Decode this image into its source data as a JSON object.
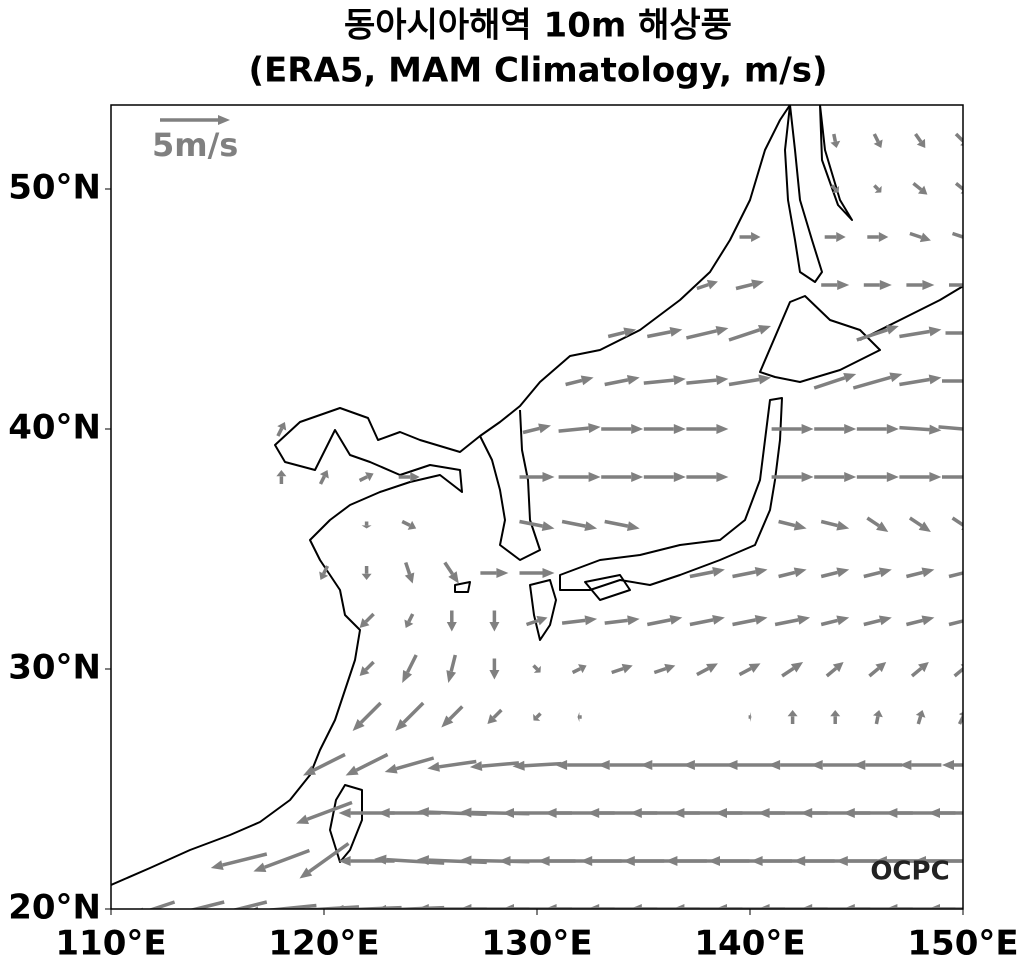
{
  "map": {
    "title": [
      "동아시아해역 10m 해상풍",
      "(ERA5, MAM Climatology, m/s)"
    ],
    "xlim": [
      110,
      150
    ],
    "ylim": [
      20,
      53.5
    ],
    "xticks": [
      {
        "value": 110,
        "label": "110°E"
      },
      {
        "value": 120,
        "label": "120°E"
      },
      {
        "value": 130,
        "label": "130°E"
      },
      {
        "value": 140,
        "label": "140°E"
      },
      {
        "value": 150,
        "label": "150°E"
      }
    ],
    "yticks": [
      {
        "value": 20,
        "label": "20°N"
      },
      {
        "value": 30,
        "label": "30°N"
      },
      {
        "value": 40,
        "label": "40°N"
      },
      {
        "value": 50,
        "label": "50°N"
      }
    ],
    "reference": {
      "value": 5,
      "label": "5m/s"
    },
    "logo": "OCPC",
    "arrow_color": "#808080",
    "lons": [
      110,
      112,
      114,
      116,
      118,
      120,
      122,
      124,
      126,
      128,
      130,
      132,
      134,
      136,
      138,
      140,
      142,
      144,
      146,
      148,
      150
    ],
    "lats": [
      20,
      22,
      24,
      26,
      28,
      30,
      32,
      34,
      36,
      38,
      40,
      42,
      44,
      46,
      48,
      50,
      52
    ],
    "u": [
      [
        null,
        -3,
        -4,
        -4,
        -5,
        -5,
        -5,
        -5,
        -5,
        -5,
        -5,
        -5,
        -5,
        -5,
        -5,
        -5,
        -5,
        -5,
        -5,
        -5,
        -5
      ],
      [
        null,
        null,
        null,
        -4,
        -4,
        -3.5,
        -4,
        -5,
        -5,
        -5,
        -5.5,
        -6,
        -6,
        -6,
        -6,
        -6,
        -6,
        -6,
        -6,
        -6.5,
        -7
      ],
      [
        null,
        null,
        null,
        null,
        null,
        -4,
        -4,
        -4.5,
        -5,
        -5,
        -5,
        -5,
        -5,
        -5,
        -5,
        -5,
        -5,
        -5,
        -5,
        -5,
        -5
      ],
      [
        null,
        null,
        null,
        null,
        null,
        -3,
        -3,
        -3.5,
        -3.5,
        -3.5,
        -3.5,
        -3.5,
        -3.5,
        -3.5,
        -3.5,
        -3.5,
        -3.5,
        -3.5,
        -3.5,
        -3,
        -3
      ],
      [
        null,
        null,
        null,
        null,
        null,
        null,
        -2,
        -2,
        -1.5,
        -1,
        -0.5,
        -0.3,
        0,
        0,
        0,
        0.2,
        0,
        0,
        0.2,
        0.3,
        0.5
      ],
      [
        null,
        null,
        null,
        null,
        null,
        null,
        -1,
        -1,
        -0.5,
        0,
        0.5,
        1,
        1.5,
        1.5,
        1.5,
        1.5,
        1.5,
        1.2,
        1.2,
        1.2,
        1.2
      ],
      [
        null,
        null,
        null,
        null,
        null,
        null,
        -1,
        -0.5,
        0,
        0,
        1.5,
        2.5,
        2.5,
        2.5,
        2.5,
        2.5,
        2.5,
        2,
        2,
        2,
        2
      ],
      [
        null,
        null,
        null,
        null,
        null,
        -0.5,
        0,
        0.5,
        1,
        2,
        2.5,
        null,
        null,
        null,
        2.5,
        2.5,
        2,
        2,
        2,
        2,
        2
      ],
      [
        null,
        null,
        null,
        null,
        null,
        null,
        0,
        1,
        null,
        null,
        2.5,
        2.5,
        2.5,
        null,
        null,
        null,
        2,
        2,
        1.5,
        1.5,
        1.5
      ],
      [
        null,
        null,
        null,
        null,
        0,
        0.5,
        1,
        1.5,
        null,
        null,
        2.5,
        3,
        3,
        3,
        3,
        null,
        3,
        3,
        3,
        3,
        3
      ],
      [
        null,
        null,
        null,
        null,
        0.5,
        null,
        null,
        null,
        null,
        null,
        2,
        3,
        3,
        3,
        3,
        null,
        3,
        3,
        3,
        3,
        3.5
      ],
      [
        null,
        null,
        null,
        null,
        null,
        null,
        null,
        null,
        null,
        null,
        null,
        2,
        2.5,
        3,
        3,
        3,
        null,
        3,
        3.5,
        3,
        3
      ],
      [
        null,
        null,
        null,
        null,
        null,
        null,
        null,
        null,
        null,
        null,
        null,
        null,
        2,
        2.5,
        3,
        3,
        null,
        null,
        3,
        3,
        2.5
      ],
      [
        null,
        null,
        null,
        null,
        null,
        null,
        null,
        null,
        null,
        null,
        null,
        null,
        null,
        null,
        1.5,
        2,
        null,
        2,
        2,
        2,
        2
      ],
      [
        null,
        null,
        null,
        null,
        null,
        null,
        null,
        null,
        null,
        null,
        null,
        null,
        null,
        null,
        null,
        1.5,
        null,
        1.5,
        1.5,
        1.5,
        1.5
      ],
      [
        null,
        null,
        null,
        null,
        null,
        null,
        null,
        null,
        null,
        null,
        null,
        null,
        null,
        null,
        null,
        null,
        null,
        0.5,
        0.5,
        1,
        1
      ],
      [
        null,
        null,
        null,
        null,
        null,
        null,
        null,
        null,
        null,
        null,
        null,
        null,
        null,
        null,
        null,
        null,
        null,
        0.2,
        0.5,
        0.7,
        1
      ]
    ],
    "v": [
      [
        null,
        -1,
        -1,
        -1,
        -0.5,
        -0.3,
        -0.2,
        -0.2,
        0,
        0,
        0,
        0,
        0,
        0,
        0,
        0,
        0,
        0,
        0,
        0,
        0
      ],
      [
        null,
        null,
        null,
        -1,
        -1.5,
        -2.5,
        0,
        0.3,
        0.2,
        0.1,
        0,
        0,
        0,
        0,
        0,
        0,
        0,
        0,
        0,
        0,
        0
      ],
      [
        null,
        null,
        null,
        null,
        null,
        -1.5,
        0,
        0,
        0.2,
        0.1,
        0,
        0,
        0,
        0,
        0,
        0,
        0,
        0,
        0,
        0,
        0
      ],
      [
        null,
        null,
        null,
        null,
        null,
        -1.5,
        -1.5,
        -1,
        -0.5,
        -0.3,
        -0.2,
        0,
        0,
        0,
        0,
        0,
        0,
        0,
        0,
        0,
        0
      ],
      [
        null,
        null,
        null,
        null,
        null,
        null,
        -2,
        -2,
        -1.5,
        -1,
        -0.5,
        0,
        0,
        0,
        0,
        0,
        1,
        1,
        1,
        1,
        1
      ],
      [
        null,
        null,
        null,
        null,
        null,
        null,
        -1,
        -2,
        -2,
        -1.5,
        -0.5,
        0.5,
        0.5,
        0.5,
        0.8,
        0.8,
        1,
        1,
        1,
        1,
        1
      ],
      [
        null,
        null,
        null,
        null,
        null,
        null,
        -1,
        -1,
        -1.5,
        -1.5,
        0.5,
        0.3,
        0.3,
        0.5,
        0.5,
        0.5,
        0.5,
        0.5,
        0.5,
        0.5,
        0.5
      ],
      [
        null,
        null,
        null,
        null,
        null,
        -1,
        -1,
        -1.5,
        -1.5,
        0,
        0,
        null,
        null,
        null,
        0.5,
        0.5,
        0.5,
        0.5,
        0.5,
        0.5,
        0.5
      ],
      [
        null,
        null,
        null,
        null,
        null,
        null,
        -0.5,
        -0.5,
        null,
        null,
        -0.5,
        -0.5,
        -0.5,
        null,
        null,
        null,
        -0.5,
        -0.5,
        -1,
        -1,
        -1
      ],
      [
        null,
        null,
        null,
        null,
        1,
        1,
        0.5,
        0,
        null,
        null,
        0,
        0,
        0,
        0,
        0,
        null,
        0,
        0,
        0,
        0,
        0
      ],
      [
        null,
        null,
        null,
        null,
        1,
        null,
        null,
        null,
        null,
        null,
        0.5,
        0.3,
        0,
        0,
        0,
        null,
        0,
        0,
        0,
        -0.2,
        -0.3
      ],
      [
        null,
        null,
        null,
        null,
        null,
        null,
        null,
        null,
        null,
        null,
        null,
        0.5,
        0.5,
        0.3,
        0.3,
        0.5,
        null,
        1,
        1,
        0.5,
        0
      ],
      [
        null,
        null,
        null,
        null,
        null,
        null,
        null,
        null,
        null,
        null,
        null,
        null,
        0.5,
        0.5,
        0.7,
        1,
        null,
        null,
        1,
        0.5,
        0
      ],
      [
        null,
        null,
        null,
        null,
        null,
        null,
        null,
        null,
        null,
        null,
        null,
        null,
        null,
        null,
        0.5,
        0.5,
        null,
        0,
        0,
        0,
        0
      ],
      [
        null,
        null,
        null,
        null,
        null,
        null,
        null,
        null,
        null,
        null,
        null,
        null,
        null,
        null,
        null,
        0,
        null,
        0,
        0,
        -0.5,
        -0.5
      ],
      [
        null,
        null,
        null,
        null,
        null,
        null,
        null,
        null,
        null,
        null,
        null,
        null,
        null,
        null,
        null,
        null,
        null,
        -0.5,
        -0.5,
        -0.8,
        -0.8
      ],
      [
        null,
        null,
        null,
        null,
        null,
        null,
        null,
        null,
        null,
        null,
        null,
        null,
        null,
        null,
        null,
        null,
        null,
        -1,
        -1,
        -1,
        -1
      ]
    ]
  }
}
